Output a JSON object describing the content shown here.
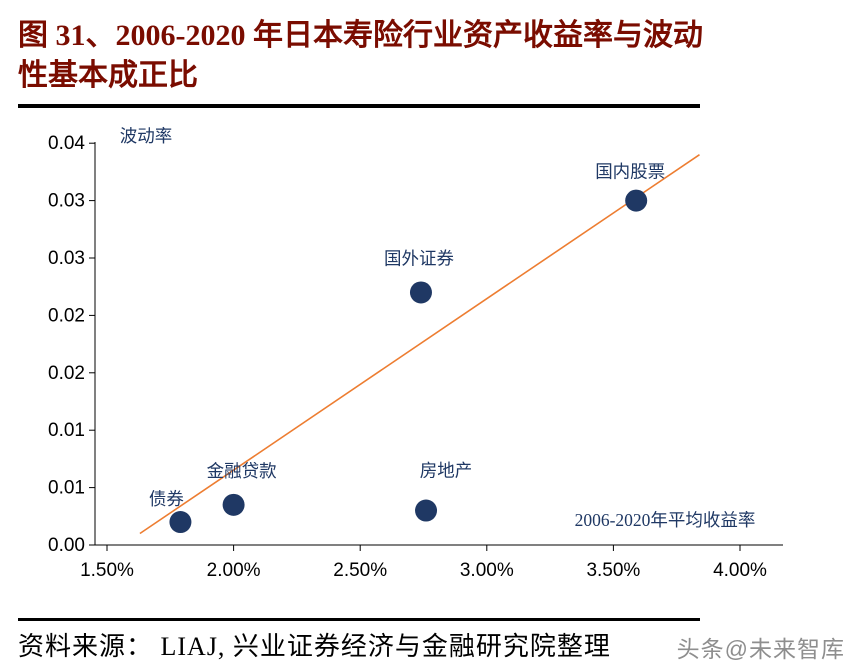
{
  "title": {
    "line1": "图 31、2006-2020 年日本寿险行业资产收益率与波动",
    "line2": "性基本成正比"
  },
  "footer": {
    "source": "资料来源： LIAJ, 兴业证券经济与金融研究院整理",
    "watermark": "头条@未来智库"
  },
  "chart_data": {
    "type": "scatter",
    "title": "2006-2020年日本寿险行业资产收益率与波动性基本成正比",
    "xlabel": "2006-2020年平均收益率",
    "ylabel": "波动率",
    "x_ticks": [
      "1.50%",
      "2.00%",
      "2.50%",
      "3.00%",
      "3.50%",
      "4.00%"
    ],
    "x_tick_values": [
      1.5,
      2.0,
      2.5,
      3.0,
      3.5,
      4.0
    ],
    "y_ticks": [
      "0.00",
      "0.01",
      "0.01",
      "0.02",
      "0.02",
      "0.03",
      "0.03",
      "0.04"
    ],
    "y_tick_values": [
      0,
      0.005,
      0.01,
      0.015,
      0.02,
      0.025,
      0.03,
      0.035
    ],
    "xlim": [
      1.45,
      4.17
    ],
    "ylim": [
      0,
      0.0365
    ],
    "grid": false,
    "legend": false,
    "points": [
      {
        "label": "债券",
        "x": 1.79,
        "y": 0.002
      },
      {
        "label": "金融贷款",
        "x": 2.0,
        "y": 0.0035
      },
      {
        "label": "房地产",
        "x": 2.76,
        "y": 0.003
      },
      {
        "label": "国外证券",
        "x": 2.74,
        "y": 0.022
      },
      {
        "label": "国内股票",
        "x": 3.59,
        "y": 0.03
      }
    ],
    "trendline": {
      "x1": 1.63,
      "y1": 0.001,
      "x2": 3.84,
      "y2": 0.034
    },
    "colors": {
      "point": "#1F3864",
      "point_label": "#1F3864",
      "trendline": "#ED7D31",
      "axis": "#000000",
      "tick_label": "#000000",
      "title": "#7A0C00",
      "watermark": "#8E8E8E"
    }
  }
}
